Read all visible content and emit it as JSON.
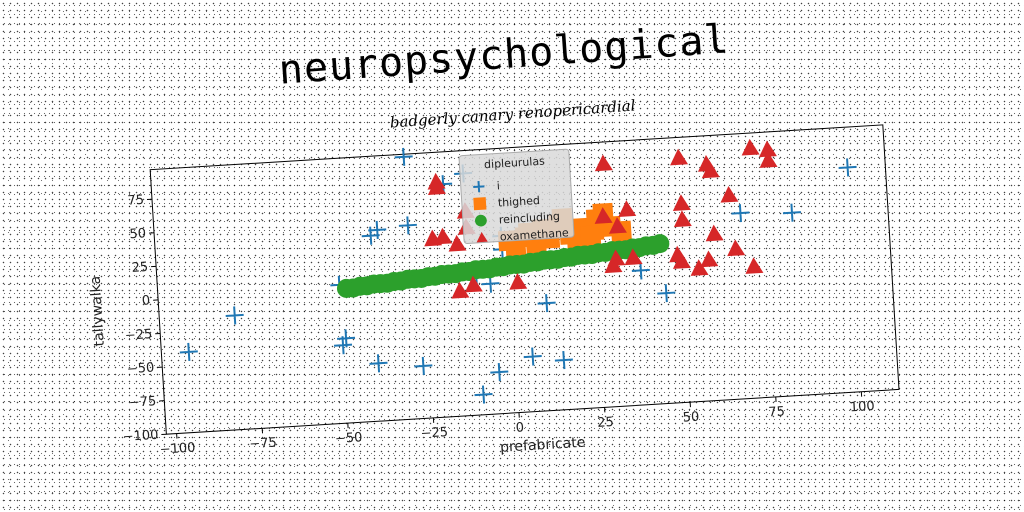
{
  "title": "neuropsychological",
  "subtitle": "badgerly canary renopericardial",
  "chart_data": {
    "type": "scatter",
    "xlabel": "prefabricate",
    "ylabel": "tallywalka",
    "xlim": [
      -103,
      111
    ],
    "ylim": [
      -100,
      97
    ],
    "x_ticks": [
      -100,
      -75,
      -50,
      -25,
      0,
      25,
      50,
      75,
      100
    ],
    "y_ticks": [
      -100,
      -75,
      -50,
      -25,
      0,
      25,
      50,
      75
    ],
    "x_tick_labels": [
      "−100",
      "−75",
      "−50",
      "−25",
      "0",
      "25",
      "50",
      "75",
      "100"
    ],
    "y_tick_labels": [
      "−100",
      "−75",
      "−50",
      "−25",
      "0",
      "25",
      "50",
      "75"
    ],
    "grid": false,
    "legend": {
      "title": "dipleurulas",
      "placement": "top-center",
      "entries": [
        "i",
        "thighed",
        "reincluding",
        "oxamethane"
      ]
    },
    "series": [
      {
        "name": "i",
        "marker": "plus",
        "color": "#1f77b4",
        "points": [
          [
            -29,
            95
          ],
          [
            -12,
            80
          ],
          [
            -18,
            73
          ],
          [
            -40,
            38
          ],
          [
            -38,
            42
          ],
          [
            -29,
            44
          ],
          [
            -2,
            32
          ],
          [
            -50,
            3
          ],
          [
            -6,
            -3
          ],
          [
            -81,
            -15
          ],
          [
            -95,
            -40
          ],
          [
            -49,
            -37
          ],
          [
            -50,
            -42
          ],
          [
            -40,
            -57
          ],
          [
            -27,
            -61
          ],
          [
            -5,
            -69
          ],
          [
            5,
            -59
          ],
          [
            14,
            -63
          ],
          [
            -10,
            -85
          ],
          [
            10,
            -20
          ],
          [
            38,
            0
          ],
          [
            45,
            -18
          ],
          [
            68,
            38
          ],
          [
            83,
            36
          ],
          [
            100,
            67
          ],
          [
            -10,
            2
          ],
          [
            -2,
            22
          ]
        ]
      },
      {
        "name": "thighed",
        "marker": "square",
        "color": "#ff7f0e",
        "points": [
          [
            0,
            28
          ],
          [
            5,
            30
          ],
          [
            10,
            35
          ],
          [
            15,
            38
          ],
          [
            18,
            30
          ],
          [
            22,
            34
          ],
          [
            26,
            40
          ],
          [
            28,
            44
          ],
          [
            30,
            34
          ],
          [
            25,
            32
          ],
          [
            20,
            25
          ],
          [
            12,
            28
          ],
          [
            8,
            25
          ],
          [
            2,
            22
          ],
          [
            33,
            30
          ],
          [
            16,
            42
          ],
          [
            6,
            33
          ],
          [
            24,
            28
          ]
        ]
      },
      {
        "name": "reincluding",
        "marker": "circle",
        "color": "#2ca02c",
        "points": [
          [
            -48,
            0
          ],
          [
            -46,
            0
          ],
          [
            -44,
            1
          ],
          [
            -42,
            1
          ],
          [
            -40,
            2
          ],
          [
            -38,
            2
          ],
          [
            -36,
            2
          ],
          [
            -34,
            3
          ],
          [
            -32,
            3
          ],
          [
            -30,
            4
          ],
          [
            -28,
            4
          ],
          [
            -26,
            4
          ],
          [
            -24,
            5
          ],
          [
            -22,
            5
          ],
          [
            -20,
            6
          ],
          [
            -18,
            6
          ],
          [
            -16,
            6
          ],
          [
            -14,
            7
          ],
          [
            -12,
            7
          ],
          [
            -10,
            8
          ],
          [
            -8,
            8
          ],
          [
            -6,
            8
          ],
          [
            -4,
            9
          ],
          [
            -2,
            9
          ],
          [
            0,
            10
          ],
          [
            2,
            10
          ],
          [
            4,
            10
          ],
          [
            6,
            11
          ],
          [
            8,
            11
          ],
          [
            10,
            12
          ],
          [
            12,
            12
          ],
          [
            14,
            12
          ],
          [
            16,
            13
          ],
          [
            18,
            13
          ],
          [
            20,
            14
          ],
          [
            22,
            14
          ],
          [
            24,
            14
          ],
          [
            26,
            15
          ],
          [
            28,
            15
          ],
          [
            30,
            16
          ],
          [
            32,
            16
          ],
          [
            34,
            16
          ],
          [
            36,
            17
          ],
          [
            38,
            17
          ],
          [
            40,
            18
          ],
          [
            42,
            18
          ],
          [
            44,
            19
          ]
        ]
      },
      {
        "name": "oxamethane",
        "marker": "triangle",
        "color": "#d62728",
        "points": [
          [
            -20,
            75
          ],
          [
            -20,
            71
          ],
          [
            -22,
            33
          ],
          [
            -19,
            34
          ],
          [
            -15,
            28
          ],
          [
            -12,
            40
          ],
          [
            -15,
            -7
          ],
          [
            -11,
            -3
          ],
          [
            2,
            -3
          ],
          [
            29,
            81
          ],
          [
            28,
            42
          ],
          [
            35,
            46
          ],
          [
            32,
            34
          ],
          [
            31,
            10
          ],
          [
            30,
            5
          ],
          [
            36,
            10
          ],
          [
            49,
            10
          ],
          [
            50,
            5
          ],
          [
            55,
            -1
          ],
          [
            51,
            36
          ],
          [
            51,
            48
          ],
          [
            51,
            82
          ],
          [
            59,
            76
          ],
          [
            60,
            71
          ],
          [
            65,
            52
          ],
          [
            60,
            24
          ],
          [
            58,
            5
          ],
          [
            66,
            12
          ],
          [
            71,
            -2
          ],
          [
            72,
            86
          ],
          [
            77,
            84
          ],
          [
            77,
            76
          ],
          [
            -12,
            52
          ]
        ]
      }
    ]
  }
}
